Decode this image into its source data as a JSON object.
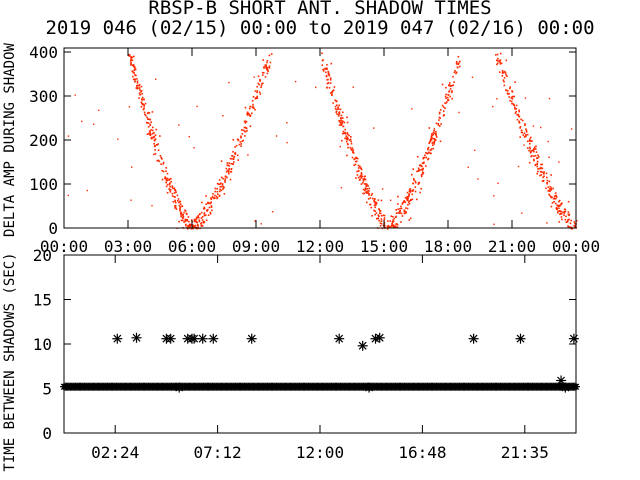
{
  "title": {
    "line1": "RBSP-B SHORT ANT. SHADOW TIMES",
    "line2": "2019 046 (02/15) 00:00 to 2019 047 (02/16) 00:00"
  },
  "colors": {
    "top_points": "#ff2a00",
    "bottom_points": "#000000",
    "axes": "#000000"
  },
  "chart_data": [
    {
      "type": "scatter",
      "ylabel": "DELTA AMP DURING SHADOW",
      "xlim": [
        "00:00",
        "24:00"
      ],
      "ylim": [
        0,
        400
      ],
      "x_tick_labels": [
        "00:00",
        "03:00",
        "06:00",
        "09:00",
        "12:00",
        "15:00",
        "18:00",
        "21:00",
        "00:00"
      ],
      "y_tick_labels": [
        "0",
        "100",
        "200",
        "300",
        "400"
      ],
      "y_tick_values": [
        0,
        100,
        200,
        300,
        400
      ],
      "x_tick_hours": [
        0,
        3,
        6,
        9,
        12,
        15,
        18,
        21,
        24
      ],
      "marker": "dot",
      "branches": [
        {
          "descending": true,
          "from_hour": 3.0,
          "to_hour": 6.0,
          "from_value": 400,
          "to_value": 0
        },
        {
          "descending": false,
          "from_hour": 6.0,
          "to_hour": 9.7,
          "from_value": 0,
          "to_value": 400
        },
        {
          "descending": true,
          "from_hour": 12.0,
          "to_hour": 15.2,
          "from_value": 400,
          "to_value": 0
        },
        {
          "descending": false,
          "from_hour": 15.2,
          "to_hour": 18.6,
          "from_value": 0,
          "to_value": 400
        },
        {
          "descending": true,
          "from_hour": 20.2,
          "to_hour": 24.0,
          "from_value": 400,
          "to_value": 0
        }
      ],
      "grid": false
    },
    {
      "type": "scatter",
      "ylabel": "TIME BETWEEN SHADOWS (SEC)",
      "xlim": [
        "00:00",
        "24:00"
      ],
      "ylim": [
        0,
        20
      ],
      "x_tick_labels": [
        "02:24",
        "07:12",
        "12:00",
        "16:48",
        "21:35"
      ],
      "x_tick_hours": [
        2.4,
        7.2,
        12.0,
        16.8,
        21.6
      ],
      "y_tick_labels": [
        "0",
        "5",
        "10",
        "15",
        "20"
      ],
      "y_tick_values": [
        0,
        5,
        10,
        15,
        20
      ],
      "marker": "asterisk",
      "baseline_value": 5.2,
      "baseline_range_hours": [
        0.0,
        24.0
      ],
      "outliers": [
        {
          "x": 2.5,
          "y": 10.6
        },
        {
          "x": 3.4,
          "y": 10.7
        },
        {
          "x": 4.8,
          "y": 10.6
        },
        {
          "x": 5.0,
          "y": 10.6
        },
        {
          "x": 5.4,
          "y": 5.1
        },
        {
          "x": 5.8,
          "y": 10.6
        },
        {
          "x": 6.0,
          "y": 10.6
        },
        {
          "x": 6.1,
          "y": 10.6
        },
        {
          "x": 6.5,
          "y": 10.6
        },
        {
          "x": 7.0,
          "y": 10.6
        },
        {
          "x": 8.8,
          "y": 10.6
        },
        {
          "x": 12.9,
          "y": 10.6
        },
        {
          "x": 14.0,
          "y": 9.8
        },
        {
          "x": 14.3,
          "y": 5.1
        },
        {
          "x": 14.6,
          "y": 10.6
        },
        {
          "x": 14.8,
          "y": 10.7
        },
        {
          "x": 19.2,
          "y": 10.6
        },
        {
          "x": 21.4,
          "y": 10.6
        },
        {
          "x": 23.3,
          "y": 5.9
        },
        {
          "x": 23.5,
          "y": 5.1
        },
        {
          "x": 23.9,
          "y": 10.6
        }
      ],
      "grid": false
    }
  ]
}
